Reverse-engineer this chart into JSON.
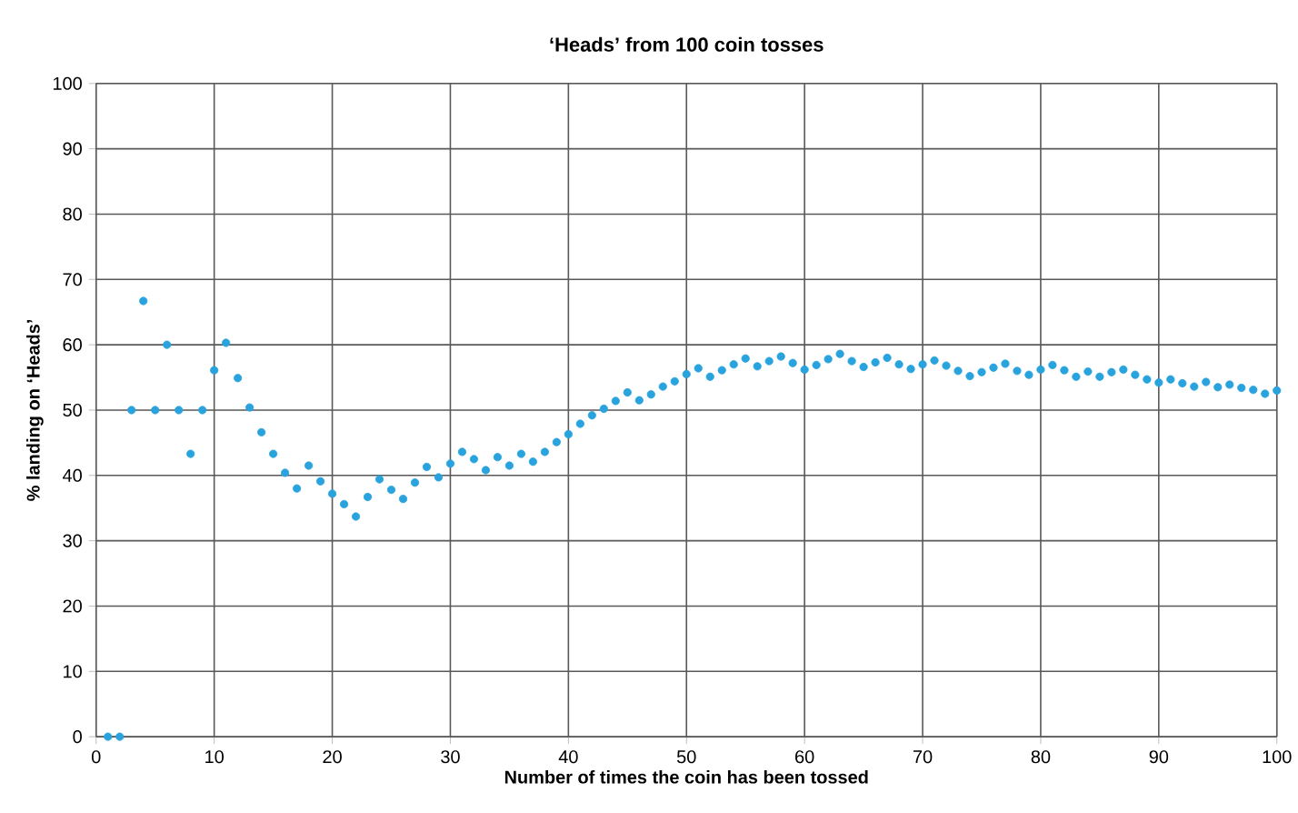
{
  "chart_data": {
    "type": "scatter",
    "title": "‘Heads’ from 100 coin tosses",
    "xlabel": "Number of times the coin has been tossed",
    "ylabel": "% landing on ‘Heads’",
    "x": [
      1,
      2,
      3,
      4,
      5,
      6,
      7,
      8,
      9,
      10,
      11,
      12,
      13,
      14,
      15,
      16,
      17,
      18,
      19,
      20,
      21,
      22,
      23,
      24,
      25,
      26,
      27,
      28,
      29,
      30,
      31,
      32,
      33,
      34,
      35,
      36,
      37,
      38,
      39,
      40,
      41,
      42,
      43,
      44,
      45,
      46,
      47,
      48,
      49,
      50,
      51,
      52,
      53,
      54,
      55,
      56,
      57,
      58,
      59,
      60,
      61,
      62,
      63,
      64,
      65,
      66,
      67,
      68,
      69,
      70,
      71,
      72,
      73,
      74,
      75,
      76,
      77,
      78,
      79,
      80,
      81,
      82,
      83,
      84,
      85,
      86,
      87,
      88,
      89,
      90,
      91,
      92,
      93,
      94,
      95,
      96,
      97,
      98,
      99,
      100
    ],
    "series": [
      {
        "color": "#29a3dd",
        "values": [
          0,
          0,
          50,
          66.7,
          50,
          60,
          50,
          43.3,
          50,
          56.1,
          60.3,
          54.9,
          50.4,
          46.6,
          43.3,
          40.4,
          38,
          41.5,
          39.1,
          37.2,
          35.6,
          33.7,
          36.7,
          39.4,
          37.8,
          36.4,
          38.9,
          41.3,
          39.7,
          41.8,
          43.6,
          42.5,
          40.8,
          42.8,
          41.5,
          43.3,
          42.1,
          43.6,
          45.1,
          46.3,
          47.9,
          49.2,
          50.2,
          51.4,
          52.7,
          51.5,
          52.4,
          53.6,
          54.4,
          55.5,
          56.4,
          55.1,
          56.1,
          57,
          57.9,
          56.7,
          57.5,
          58.2,
          57.2,
          56.2,
          56.9,
          57.8,
          58.6,
          57.5,
          56.6,
          57.3,
          58,
          57,
          56.3,
          57,
          57.6,
          56.8,
          56,
          55.2,
          55.8,
          56.5,
          57.1,
          56,
          55.4,
          56.2,
          56.9,
          56.1,
          55.1,
          55.9,
          55.1,
          55.8,
          56.2,
          55.4,
          54.7,
          54.2,
          54.7,
          54.1,
          53.6,
          54.3,
          53.5,
          53.9,
          53.4,
          53.1,
          52.5,
          53
        ]
      }
    ],
    "xlim": [
      0,
      100
    ],
    "ylim": [
      0,
      100
    ],
    "xticks": [
      0,
      10,
      20,
      30,
      40,
      50,
      60,
      70,
      80,
      90,
      100
    ],
    "yticks": [
      0,
      10,
      20,
      30,
      40,
      50,
      60,
      70,
      80,
      90,
      100
    ],
    "grid": true
  }
}
